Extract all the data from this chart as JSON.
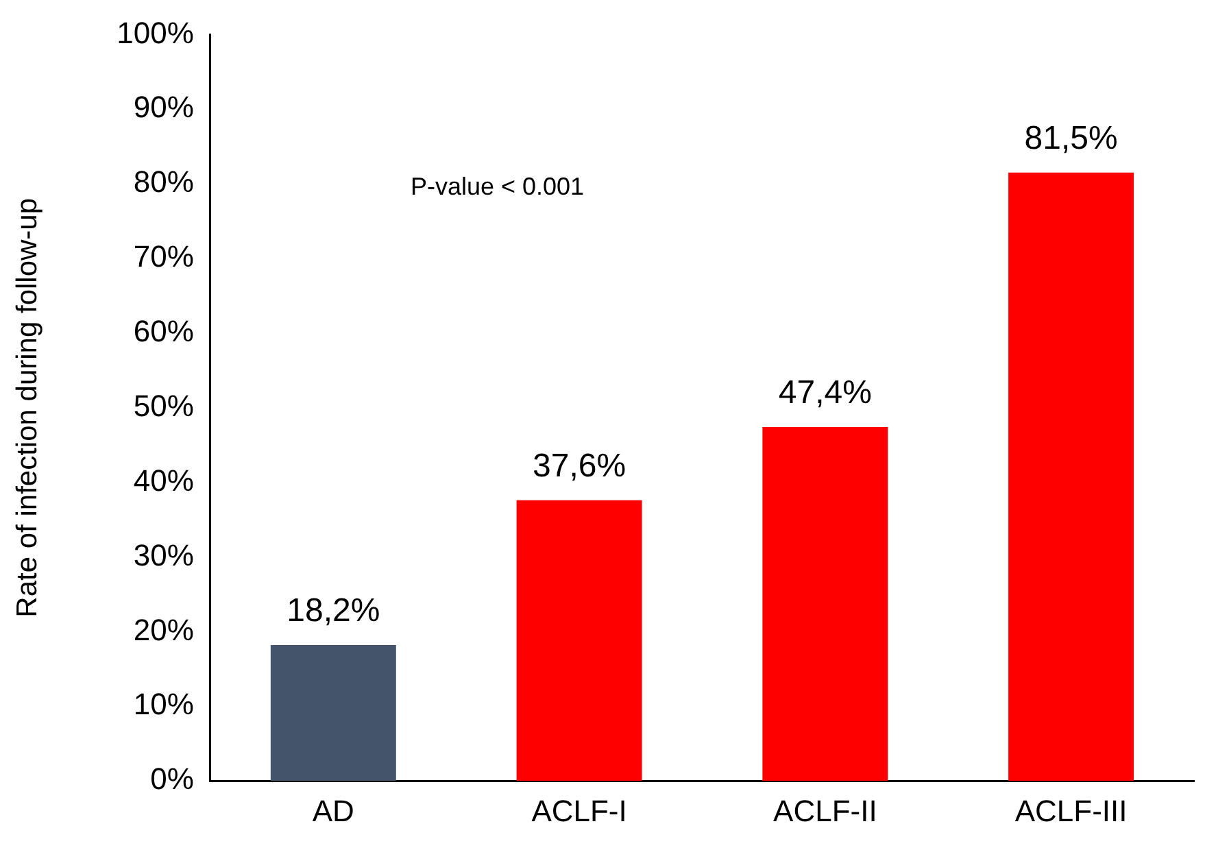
{
  "chart_data": {
    "type": "bar",
    "ylabel": "Rate of infection during follow-up",
    "categories": [
      "AD",
      "ACLF-I",
      "ACLF-II",
      "ACLF-III"
    ],
    "values": [
      18.2,
      37.6,
      47.4,
      81.5
    ],
    "colors": [
      "#44546a",
      "#ff0000",
      "#ff0000",
      "#ff0000"
    ],
    "value_labels": [
      "18,2%",
      "37,6%",
      "47,4%",
      "81,5%"
    ],
    "ylim": [
      0,
      100
    ],
    "yticks": [
      {
        "value": 0,
        "label": "0%"
      },
      {
        "value": 10,
        "label": "10%"
      },
      {
        "value": 20,
        "label": "20%"
      },
      {
        "value": 30,
        "label": "30%"
      },
      {
        "value": 40,
        "label": "40%"
      },
      {
        "value": 50,
        "label": "50%"
      },
      {
        "value": 60,
        "label": "60%"
      },
      {
        "value": 70,
        "label": "70%"
      },
      {
        "value": 80,
        "label": "80%"
      },
      {
        "value": 90,
        "label": "90%"
      },
      {
        "value": 100,
        "label": "100%"
      }
    ],
    "annotations": [
      "P-value < 0.001"
    ],
    "grid": false,
    "legend": false
  }
}
